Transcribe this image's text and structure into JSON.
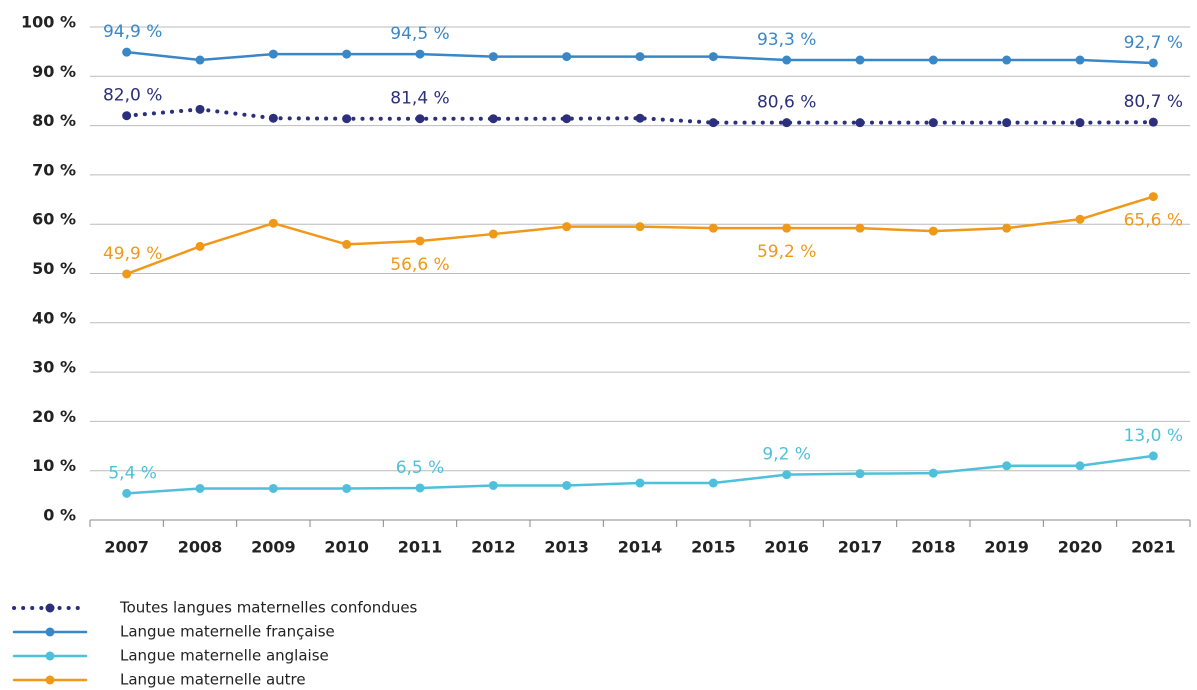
{
  "chart_data": {
    "type": "line",
    "categories": [
      "2007",
      "2008",
      "2009",
      "2010",
      "2011",
      "2012",
      "2013",
      "2014",
      "2015",
      "2016",
      "2017",
      "2018",
      "2019",
      "2020",
      "2021"
    ],
    "ylim": [
      0,
      100
    ],
    "yticks": [
      {
        "value": 0,
        "label": "0 %"
      },
      {
        "value": 10,
        "label": "10 %"
      },
      {
        "value": 20,
        "label": "20 %"
      },
      {
        "value": 30,
        "label": "30 %"
      },
      {
        "value": 40,
        "label": "40 %"
      },
      {
        "value": 50,
        "label": "50 %"
      },
      {
        "value": 60,
        "label": "60 %"
      },
      {
        "value": 70,
        "label": "70 %"
      },
      {
        "value": 80,
        "label": "80 %"
      },
      {
        "value": 90,
        "label": "90 %"
      },
      {
        "value": 100,
        "label": "100 %"
      }
    ],
    "grid": true,
    "series": [
      {
        "name": "Toutes langues maternelles confondues",
        "color": "#2b2f7c",
        "dotted": true,
        "values": [
          82.0,
          83.3,
          81.5,
          81.4,
          81.4,
          81.4,
          81.4,
          81.5,
          80.6,
          80.6,
          80.6,
          80.6,
          80.6,
          80.6,
          80.7
        ],
        "value_labels": [
          "82,0 %",
          null,
          null,
          null,
          "81,4 %",
          null,
          null,
          null,
          null,
          "80,6 %",
          null,
          null,
          null,
          null,
          "80,7 %"
        ]
      },
      {
        "name": "Langue maternelle française",
        "color": "#3a87c8",
        "values": [
          94.9,
          93.3,
          94.5,
          94.5,
          94.5,
          94.0,
          94.0,
          94.0,
          94.0,
          93.3,
          93.3,
          93.3,
          93.3,
          93.3,
          92.7
        ],
        "value_labels": [
          "94,9 %",
          null,
          null,
          null,
          "94,5 %",
          null,
          null,
          null,
          null,
          "93,3 %",
          null,
          null,
          null,
          null,
          "92,7 %"
        ]
      },
      {
        "name": "Langue maternelle anglaise",
        "color": "#4fc0dc",
        "values": [
          5.4,
          6.4,
          6.4,
          6.4,
          6.5,
          7.0,
          7.0,
          7.5,
          7.5,
          9.2,
          9.4,
          9.5,
          11.0,
          11.0,
          13.0
        ],
        "value_labels": [
          "5,4 %",
          null,
          null,
          null,
          "6,5 %",
          null,
          null,
          null,
          null,
          "9,2 %",
          null,
          null,
          null,
          null,
          "13,0 %"
        ]
      },
      {
        "name": "Langue maternelle autre",
        "color": "#f0981a",
        "values": [
          49.9,
          55.5,
          60.2,
          55.9,
          56.6,
          58.0,
          59.5,
          59.5,
          59.2,
          59.2,
          59.2,
          58.6,
          59.2,
          61.0,
          65.6
        ],
        "value_labels": [
          "49,9 %",
          null,
          null,
          null,
          "56,6 %",
          null,
          null,
          null,
          null,
          "59,2 %",
          null,
          null,
          null,
          null,
          "65,6 %"
        ]
      }
    ]
  }
}
